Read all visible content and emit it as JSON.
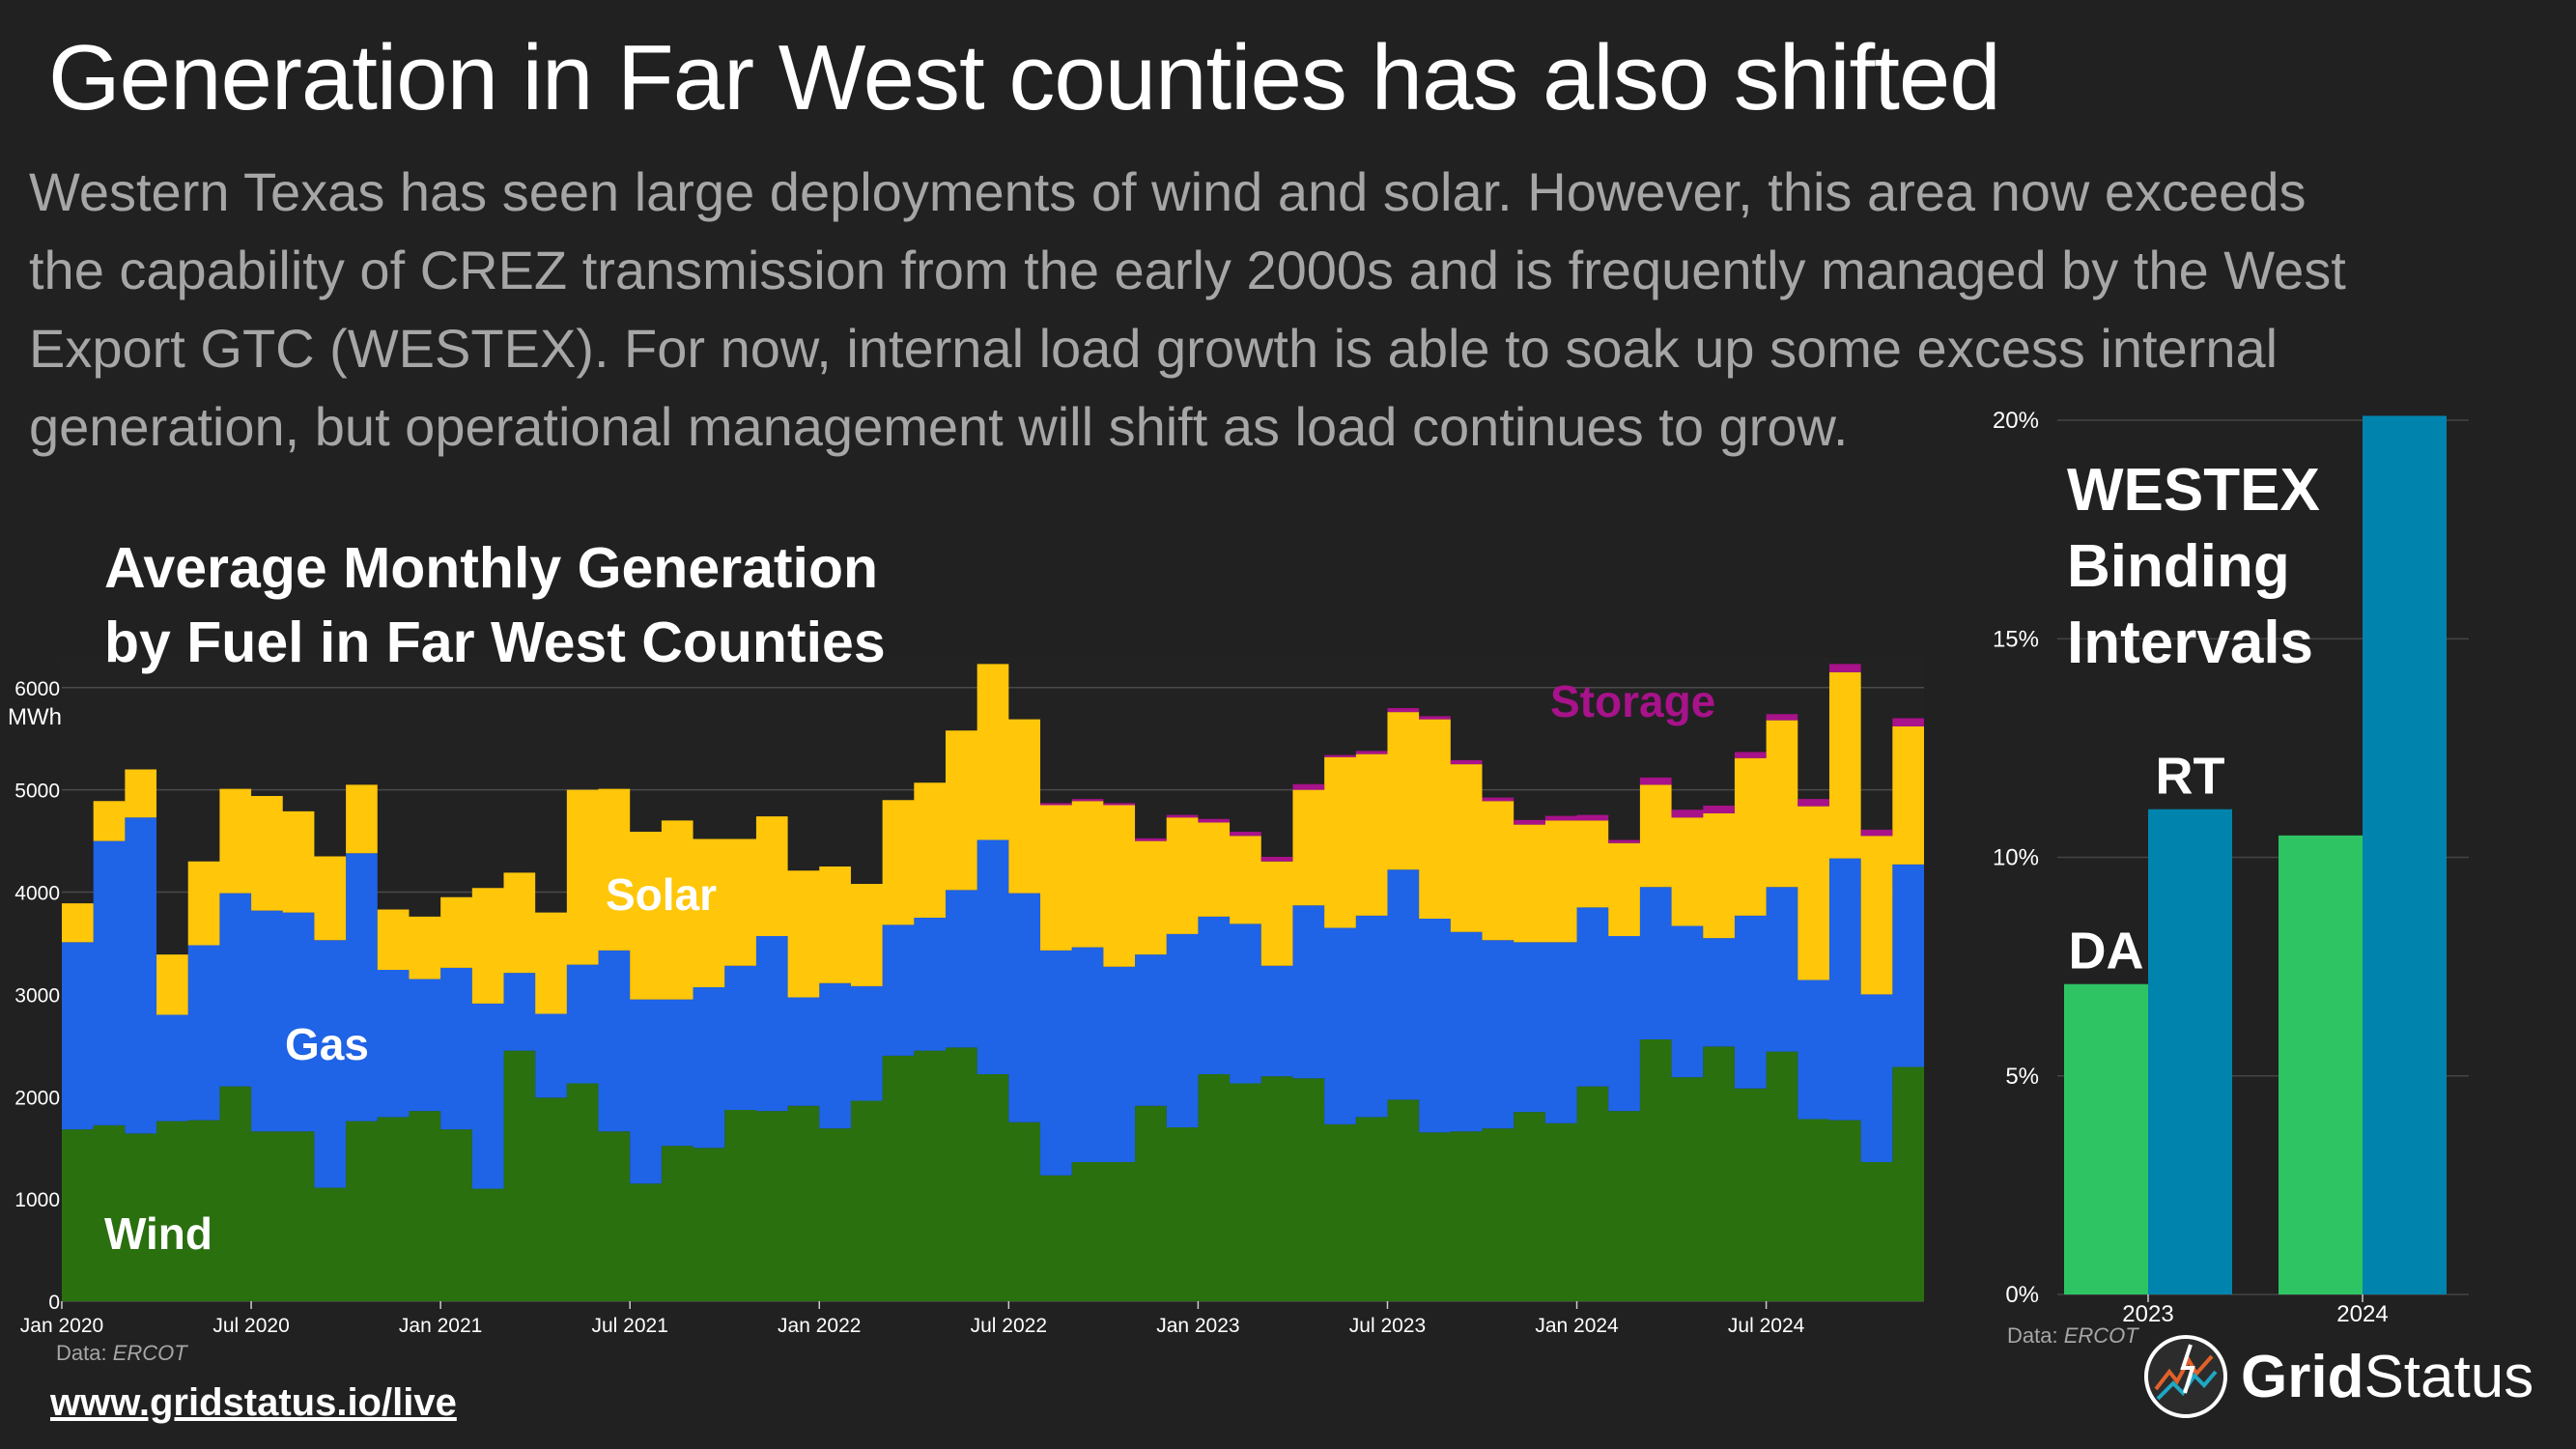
{
  "header": {
    "title": "Generation in Far West counties has also shifted",
    "subtitle_lines": [
      "Western Texas has seen large deployments of wind and solar. However, this area now exceeds",
      "the capability of CREZ transmission from the early 2000s and is frequently managed by the West",
      "Export GTC (WESTEX). For now, internal load growth is able to soak up some excess internal",
      "generation, but operational management will shift as load continues to grow."
    ]
  },
  "footer": {
    "url": "www.gridstatus.io/live",
    "logo_text_bold": "Grid",
    "logo_text_regular": "Status"
  },
  "colors": {
    "background": "#212121",
    "wind": "#2a700f",
    "gas": "#1f63e6",
    "solar": "#ffc60a",
    "storage": "#a8128a",
    "da": "#2ec464",
    "rt": "#0084ad"
  },
  "chart_data": [
    {
      "type": "area",
      "stacked": true,
      "title": "Average Monthly Generation by Fuel in Far West Counties",
      "title_lines": [
        "Average Monthly Generation",
        "by Fuel in Far West Counties"
      ],
      "ylabel": "MWh",
      "ylim": [
        0,
        6300
      ],
      "yticks": [
        0,
        1000,
        2000,
        3000,
        4000,
        5000,
        6000
      ],
      "xtick_labels": [
        "Jan 2020",
        "Jul 2020",
        "Jan 2021",
        "Jul 2021",
        "Jan 2022",
        "Jul 2022",
        "Jan 2023",
        "Jul 2023",
        "Jan 2024",
        "Jul 2024"
      ],
      "start": "Jan 2020",
      "source_label": "Data:",
      "source_name": "ERCOT",
      "series_labels": {
        "wind": "Wind",
        "gas": "Gas",
        "solar": "Solar",
        "storage": "Storage"
      },
      "series": [
        {
          "name": "Wind",
          "values": [
            1680,
            1720,
            1640,
            1760,
            1770,
            2100,
            1660,
            1660,
            1110,
            1760,
            1800,
            1860,
            1680,
            1100,
            2450,
            1990,
            2130,
            1660,
            1150,
            1520,
            1500,
            1870,
            1860,
            1910,
            1690,
            1960,
            2400,
            2450,
            2480,
            2220,
            1750,
            1230,
            1360,
            1360,
            1910,
            1700,
            2220,
            2130,
            2200,
            2180,
            1730,
            1800,
            1970,
            1650,
            1660,
            1690,
            1850,
            1740,
            2100,
            1860,
            2560,
            2190,
            2490,
            2080,
            2440,
            1780,
            1770,
            1360,
            2290
          ]
        },
        {
          "name": "Gas",
          "values": [
            1830,
            2780,
            3090,
            1040,
            1710,
            1890,
            2160,
            2140,
            2420,
            2620,
            1440,
            1290,
            1580,
            1810,
            760,
            820,
            1160,
            1770,
            1800,
            1430,
            1570,
            1410,
            1710,
            1060,
            1420,
            1120,
            1280,
            1300,
            1540,
            2290,
            2240,
            2200,
            2100,
            1910,
            1480,
            1890,
            1540,
            1560,
            1080,
            1690,
            1920,
            1970,
            2250,
            2090,
            1950,
            1840,
            1660,
            1770,
            1750,
            1710,
            1490,
            1480,
            1060,
            1690,
            1610,
            1360,
            2560,
            1640,
            1980
          ]
        },
        {
          "name": "Solar",
          "values": [
            380,
            390,
            470,
            590,
            820,
            1020,
            1120,
            990,
            820,
            670,
            590,
            610,
            690,
            1130,
            980,
            990,
            1710,
            1580,
            1640,
            1750,
            1450,
            1240,
            1170,
            1240,
            1140,
            1000,
            1220,
            1320,
            1560,
            1720,
            1700,
            1420,
            1430,
            1580,
            1110,
            1140,
            920,
            860,
            1020,
            1130,
            1670,
            1580,
            1540,
            1950,
            1640,
            1360,
            1150,
            1190,
            850,
            910,
            1000,
            1060,
            1220,
            1540,
            1630,
            1700,
            1820,
            1550,
            1350
          ]
        },
        {
          "name": "Storage",
          "values": [
            0,
            0,
            0,
            0,
            0,
            0,
            0,
            0,
            0,
            0,
            0,
            0,
            0,
            0,
            0,
            0,
            0,
            0,
            0,
            0,
            0,
            0,
            0,
            0,
            0,
            0,
            0,
            0,
            0,
            0,
            0,
            20,
            20,
            20,
            25,
            25,
            35,
            40,
            45,
            55,
            20,
            30,
            40,
            30,
            40,
            35,
            45,
            45,
            55,
            30,
            70,
            75,
            75,
            60,
            60,
            70,
            80,
            60,
            80
          ]
        }
      ]
    },
    {
      "type": "bar",
      "title": "WESTEX Binding Intervals",
      "title_lines": [
        "WESTEX",
        "Binding",
        "Intervals"
      ],
      "categories": [
        "2023",
        "2024"
      ],
      "series": [
        {
          "name": "DA",
          "values": [
            7.1,
            10.5
          ]
        },
        {
          "name": "RT",
          "values": [
            11.1,
            20.1
          ]
        }
      ],
      "ylim": [
        0,
        20
      ],
      "yticks": [
        "0%",
        "5%",
        "10%",
        "15%",
        "20%"
      ],
      "source_label": "Data:",
      "source_name": "ERCOT"
    }
  ]
}
